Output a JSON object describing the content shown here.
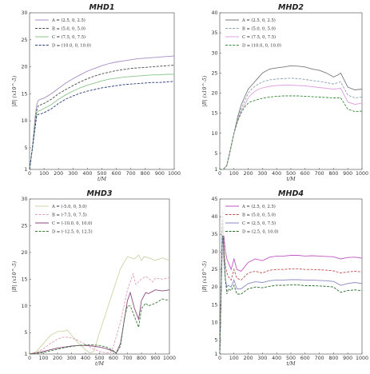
{
  "chart_data": [
    {
      "type": "line",
      "title": "MHD1",
      "xlabel": "t/M",
      "ylabel": "|B| (x10^-5)",
      "xlim": [
        0,
        1000
      ],
      "ylim": [
        1,
        30
      ],
      "xticks": [
        "0",
        "100",
        "200",
        "300",
        "400",
        "500",
        "600",
        "700",
        "800",
        "900",
        "1000"
      ],
      "yticks": [
        "1",
        "5",
        "10",
        "15",
        "20",
        "25",
        "30"
      ],
      "legend_position": "top-left",
      "series": [
        {
          "name": "A = (2.5, 0, 2.5)",
          "color": "#a78cc4",
          "dash": "solid",
          "x": [
            0,
            10,
            20,
            30,
            40,
            50,
            60,
            80,
            100,
            150,
            200,
            250,
            300,
            350,
            400,
            450,
            500,
            550,
            600,
            650,
            700,
            750,
            800,
            850,
            900,
            950,
            1000
          ],
          "y": [
            1,
            3,
            5,
            8,
            11,
            13,
            13.8,
            14,
            14.2,
            15,
            16,
            17,
            17.8,
            18.5,
            19.2,
            19.7,
            20.2,
            20.6,
            20.9,
            21.1,
            21.3,
            21.5,
            21.6,
            21.7,
            21.8,
            21.9,
            22
          ]
        },
        {
          "name": "B = (5.0, 0, 5.0)",
          "color": "#4a4a4a",
          "dash": "dashed",
          "x": [
            0,
            10,
            20,
            30,
            40,
            50,
            60,
            80,
            100,
            150,
            200,
            250,
            300,
            350,
            400,
            450,
            500,
            550,
            600,
            650,
            700,
            750,
            800,
            850,
            900,
            950,
            1000
          ],
          "y": [
            1,
            3,
            5,
            7.5,
            10,
            12,
            12.8,
            13,
            13.2,
            14,
            15,
            15.8,
            16.5,
            17.2,
            17.8,
            18.3,
            18.7,
            19,
            19.3,
            19.5,
            19.7,
            19.8,
            19.9,
            20,
            20.1,
            20.2,
            20.3
          ]
        },
        {
          "name": "C = (7.5, 0, 7.5)",
          "color": "#8cc48c",
          "dash": "solid",
          "x": [
            0,
            10,
            20,
            30,
            40,
            50,
            60,
            80,
            100,
            150,
            200,
            250,
            300,
            350,
            400,
            450,
            500,
            550,
            600,
            650,
            700,
            750,
            800,
            850,
            900,
            950,
            1000
          ],
          "y": [
            1,
            3,
            5,
            7,
            9.5,
            11.5,
            11.8,
            12,
            12.3,
            13,
            14,
            14.8,
            15.5,
            16.1,
            16.6,
            17,
            17.4,
            17.7,
            17.9,
            18.1,
            18.2,
            18.3,
            18.4,
            18.5,
            18.5,
            18.6,
            18.6
          ]
        },
        {
          "name": "D = (10.0, 0, 10.0)",
          "color": "#2a3a7a",
          "dash": "dashed",
          "x": [
            0,
            10,
            20,
            30,
            40,
            50,
            60,
            80,
            100,
            150,
            200,
            250,
            300,
            350,
            400,
            450,
            500,
            550,
            600,
            650,
            700,
            750,
            800,
            850,
            900,
            950,
            1000
          ],
          "y": [
            1,
            3,
            5,
            7,
            9,
            11,
            11.2,
            11.3,
            11.5,
            12.2,
            13.2,
            14,
            14.6,
            15.1,
            15.5,
            15.8,
            16.1,
            16.3,
            16.5,
            16.7,
            16.8,
            16.9,
            17,
            17.1,
            17.1,
            17.2,
            17.3
          ]
        }
      ]
    },
    {
      "type": "line",
      "title": "MHD2",
      "xlabel": "t/M",
      "ylabel": "|B| (x10^-5)",
      "xlim": [
        0,
        1000
      ],
      "ylim": [
        1,
        40
      ],
      "xticks": [
        "0",
        "100",
        "200",
        "300",
        "400",
        "500",
        "600",
        "700",
        "800",
        "900",
        "1000"
      ],
      "yticks": [
        "1",
        "5",
        "10",
        "15",
        "20",
        "25",
        "30",
        "35",
        "40"
      ],
      "legend_position": "top-left",
      "series": [
        {
          "name": "A = (2.5, 0, 2.5)",
          "color": "#7a7a7a",
          "dash": "solid",
          "x": [
            0,
            25,
            50,
            75,
            100,
            125,
            150,
            175,
            200,
            225,
            250,
            275,
            300,
            350,
            400,
            450,
            500,
            550,
            600,
            650,
            700,
            750,
            800,
            830,
            850,
            900,
            950,
            1000
          ],
          "y": [
            1,
            1,
            2,
            6,
            10,
            14,
            17,
            19,
            21,
            22,
            23,
            24,
            25,
            26,
            26.3,
            26.5,
            26.8,
            26.7,
            26.5,
            26,
            25.7,
            25,
            24,
            24.5,
            25,
            21.5,
            20.8,
            21
          ]
        },
        {
          "name": "B = (5.0, 0, 5.0)",
          "color": "#8aa0b0",
          "dash": "dashed",
          "x": [
            0,
            25,
            50,
            75,
            100,
            125,
            150,
            175,
            200,
            225,
            250,
            275,
            300,
            350,
            400,
            450,
            500,
            550,
            600,
            650,
            700,
            750,
            800,
            830,
            850,
            900,
            950,
            1000
          ],
          "y": [
            1,
            1,
            2,
            6,
            10,
            13.5,
            16,
            18,
            20,
            21,
            21.8,
            22.3,
            22.8,
            23.3,
            23.5,
            23.6,
            23.7,
            23.6,
            23.4,
            23.1,
            22.9,
            22.6,
            22.3,
            22.6,
            22.8,
            19.5,
            18.8,
            19
          ]
        },
        {
          "name": "C = (7.5, 0, 7.5)",
          "color": "#e0a0e0",
          "dash": "solid",
          "x": [
            0,
            25,
            50,
            75,
            100,
            125,
            150,
            175,
            200,
            225,
            250,
            275,
            300,
            350,
            400,
            450,
            500,
            550,
            600,
            650,
            700,
            750,
            800,
            830,
            850,
            900,
            950,
            1000
          ],
          "y": [
            1,
            1,
            2,
            6,
            10,
            13,
            15.5,
            17,
            18.8,
            19.8,
            20.5,
            21,
            21.3,
            21.7,
            21.9,
            22,
            22,
            21.9,
            21.8,
            21.6,
            21.4,
            21.2,
            21,
            21.1,
            21.2,
            17.8,
            17.2,
            17.5
          ]
        },
        {
          "name": "D = (10.0, 0, 10.0)",
          "color": "#3a8a3a",
          "dash": "dashed",
          "x": [
            0,
            25,
            50,
            75,
            100,
            125,
            150,
            175,
            200,
            225,
            250,
            275,
            300,
            350,
            400,
            450,
            500,
            550,
            600,
            650,
            700,
            750,
            800,
            830,
            850,
            900,
            950,
            1000
          ],
          "y": [
            1,
            1,
            2,
            6,
            10,
            13,
            15,
            16.5,
            17.5,
            18,
            18.2,
            18.5,
            18.7,
            19,
            19.2,
            19.3,
            19.3,
            19.3,
            19.2,
            19.1,
            19,
            18.9,
            18.8,
            18.8,
            18.8,
            16,
            15.4,
            15.5
          ]
        }
      ]
    },
    {
      "type": "line",
      "title": "MHD3",
      "xlabel": "t/M",
      "ylabel": "|B| (x10^-5)",
      "xlim": [
        0,
        1000
      ],
      "ylim": [
        1,
        30
      ],
      "xticks": [
        "0",
        "100",
        "200",
        "300",
        "400",
        "500",
        "600",
        "700",
        "800",
        "900",
        "1000"
      ],
      "yticks": [
        "1",
        "5",
        "10",
        "15",
        "20",
        "25",
        "30"
      ],
      "legend_position": "top-left",
      "series": [
        {
          "name": "A = (-5.0, 0, 5.0)",
          "color": "#ccd4a4",
          "dash": "solid",
          "x": [
            0,
            50,
            100,
            150,
            200,
            250,
            270,
            300,
            350,
            400,
            430,
            460,
            500,
            550,
            600,
            650,
            700,
            750,
            780,
            800,
            820,
            850,
            900,
            950,
            1000
          ],
          "y": [
            1,
            1.5,
            3,
            4.5,
            5.2,
            5.3,
            5.5,
            4.5,
            3,
            1.8,
            1.2,
            1.5,
            5,
            9,
            13,
            17,
            19.2,
            18.8,
            19.5,
            18.5,
            19.2,
            19,
            18.5,
            19,
            18.5
          ]
        },
        {
          "name": "B = (-7.5, 0, 7.5)",
          "color": "#e0a0b8",
          "dash": "dashed",
          "x": [
            0,
            50,
            100,
            150,
            200,
            250,
            300,
            350,
            400,
            450,
            500,
            550,
            580,
            600,
            650,
            700,
            740,
            760,
            800,
            830,
            850,
            880,
            900,
            950,
            1000
          ],
          "y": [
            1,
            1.3,
            2,
            3,
            3.8,
            4.2,
            4,
            3.5,
            2.8,
            2,
            1.5,
            1.2,
            1.3,
            2.5,
            7,
            13,
            16,
            14,
            15,
            15.5,
            15.2,
            14.5,
            15.2,
            15,
            15.3
          ]
        },
        {
          "name": "C = (-10.0, 0, 10.0)",
          "color": "#8a4a7a",
          "dash": "solid",
          "x": [
            0,
            50,
            100,
            150,
            200,
            250,
            300,
            350,
            400,
            450,
            500,
            550,
            600,
            620,
            650,
            700,
            720,
            750,
            780,
            800,
            830,
            850,
            900,
            950,
            1000
          ],
          "y": [
            1,
            1.2,
            1.5,
            1.8,
            2.1,
            2.3,
            2.5,
            2.6,
            2.6,
            2.5,
            2.3,
            2,
            1.5,
            1.2,
            3,
            11,
            12.5,
            9.5,
            7.5,
            11,
            12.5,
            12.3,
            13,
            12.8,
            13
          ]
        },
        {
          "name": "D = (-12.5, 0, 12.5)",
          "color": "#3a7a3a",
          "dash": "dashed",
          "x": [
            0,
            50,
            100,
            150,
            200,
            250,
            300,
            350,
            400,
            450,
            500,
            550,
            600,
            620,
            650,
            680,
            700,
            720,
            750,
            780,
            800,
            830,
            850,
            900,
            950,
            1000
          ],
          "y": [
            1,
            1.1,
            1.3,
            1.6,
            1.9,
            2.2,
            2.4,
            2.6,
            2.7,
            2.7,
            2.6,
            2.3,
            1.6,
            1.1,
            2.5,
            8,
            10,
            10,
            8,
            6,
            9.5,
            10.5,
            10,
            10.5,
            11.3,
            11
          ]
        }
      ]
    },
    {
      "type": "line",
      "title": "MHD4",
      "xlabel": "t/M",
      "ylabel": "|B| (x10^-5)",
      "xlim": [
        0,
        1000
      ],
      "ylim": [
        1,
        45
      ],
      "xticks": [
        "0",
        "100",
        "200",
        "300",
        "400",
        "500",
        "600",
        "700",
        "800",
        "900",
        "1000"
      ],
      "yticks": [
        "1",
        "5",
        "10",
        "15",
        "20",
        "25",
        "30",
        "35",
        "40",
        "45"
      ],
      "legend_position": "top-left",
      "series": [
        {
          "name": "A = (2.5, 0, 2.5)",
          "color": "#c058c0",
          "dash": "solid",
          "x": [
            0,
            10,
            20,
            30,
            40,
            50,
            60,
            80,
            100,
            120,
            150,
            200,
            250,
            300,
            350,
            400,
            450,
            500,
            550,
            600,
            650,
            700,
            750,
            800,
            850,
            900,
            950,
            1000
          ],
          "y": [
            1,
            20,
            39,
            34,
            30,
            28,
            27,
            25,
            28,
            25,
            24.5,
            27,
            28,
            27.5,
            28.5,
            28.8,
            28.8,
            29,
            29,
            28.8,
            28.9,
            28.8,
            28.7,
            28.6,
            28,
            28.4,
            28.5,
            28.2
          ]
        },
        {
          "name": "B = (5.0, 0, 5.0)",
          "color": "#c05050",
          "dash": "dashed",
          "x": [
            0,
            10,
            20,
            30,
            40,
            50,
            60,
            80,
            100,
            120,
            150,
            200,
            250,
            300,
            350,
            400,
            450,
            500,
            550,
            600,
            650,
            700,
            750,
            800,
            850,
            900,
            950,
            1000
          ],
          "y": [
            1,
            20,
            37,
            30,
            26,
            24,
            23,
            22,
            25,
            22.5,
            22,
            24,
            24.5,
            24,
            24.8,
            25,
            25,
            25.2,
            25.2,
            25,
            25,
            24.9,
            24.8,
            24.6,
            24,
            24.3,
            24.5,
            24.3
          ]
        },
        {
          "name": "C = (2.5, 0, 7.5)",
          "color": "#8a8ac0",
          "dash": "solid",
          "x": [
            0,
            10,
            20,
            30,
            40,
            50,
            60,
            80,
            100,
            120,
            150,
            200,
            250,
            300,
            350,
            400,
            450,
            500,
            550,
            600,
            650,
            700,
            750,
            800,
            850,
            900,
            950,
            1000
          ],
          "y": [
            1,
            20,
            36,
            27,
            22,
            20,
            20.5,
            20,
            22,
            19.5,
            19.5,
            21,
            21.5,
            21.3,
            21.8,
            22,
            22,
            22.1,
            22.1,
            22,
            22,
            21.9,
            21.8,
            21.6,
            20.5,
            21,
            21.3,
            21
          ]
        },
        {
          "name": "D = (2.5, 0, 10.0)",
          "color": "#2a6a2a",
          "dash": "dashed",
          "x": [
            0,
            10,
            20,
            30,
            40,
            50,
            60,
            80,
            100,
            120,
            150,
            200,
            250,
            300,
            350,
            400,
            450,
            500,
            550,
            600,
            650,
            700,
            750,
            800,
            850,
            900,
            950,
            1000
          ],
          "y": [
            1,
            20,
            42,
            30,
            22,
            18,
            19.5,
            19,
            20.5,
            18,
            18,
            19.5,
            20,
            19.8,
            20.2,
            20.5,
            20.5,
            20.6,
            20.6,
            20.4,
            20.4,
            20.3,
            20.2,
            20,
            18.5,
            19,
            19.2,
            19
          ]
        }
      ]
    }
  ]
}
